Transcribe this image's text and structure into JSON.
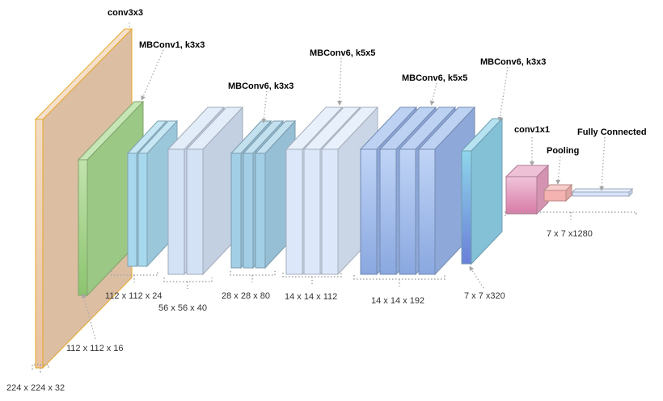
{
  "diagram": {
    "layer_labels": {
      "conv3x3": "conv3x3",
      "mbconv1_k3": "MBConv1, k3x3",
      "mbconv6_k3_a": "MBConv6, k3x3",
      "mbconv6_k5_a": "MBConv6, k5x5",
      "mbconv6_k5_b": "MBConv6, k5x5",
      "mbconv6_k3_b": "MBConv6, k3x3",
      "conv1x1": "conv1x1",
      "pooling": "Pooling",
      "fully_connected": "Fully Connected"
    },
    "dimension_labels": {
      "d224": "224 x 224 x 32",
      "d112_16": "112 x 112 x 16",
      "d112_24": "112 x 112 x 24",
      "d56": "56 x 56 x 40",
      "d28": "28 x 28 x 80",
      "d14_112": "14 x 14 x 112",
      "d14_192": "14 x 14 x 192",
      "d7_320": "7 x 7 x320",
      "d7_1280": "7 x 7 x1280"
    },
    "colors": {
      "input_block": "#efcfb1",
      "input_border": "#e6a72a",
      "green_block": "#a9d98f",
      "cyan_block": "#a8d8ee",
      "pale_blue_block": "#d4e2f6",
      "teal_block": "#a3cfe6",
      "light_blue_block": "#dce8fa",
      "blue_block": "#9ab8ec",
      "gradient_block_top": "#8fd2ea",
      "gradient_block_bottom": "#6c86dc",
      "pink_block": "#e7a0c2",
      "salmon_block": "#f4b3b0",
      "fc_bar": "#d6e3fb",
      "leader_line": "#a6a6a6"
    }
  }
}
